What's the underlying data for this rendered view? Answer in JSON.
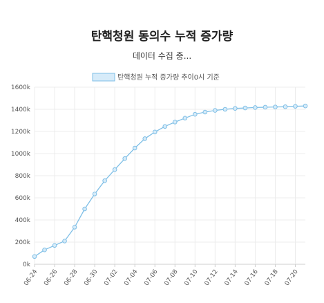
{
  "header": {
    "title": "탄핵청원 동의수 누적 증가량",
    "status": "데이터 수집 중..."
  },
  "chart_data": {
    "type": "line",
    "title": "탄핵청원 동의수 누적 증가량",
    "legend": {
      "label": "탄핵청원 누적 증가량 추이0시 기준",
      "position": "top"
    },
    "grid": true,
    "ylim": [
      0,
      1600000
    ],
    "yticks": [
      0,
      200000,
      400000,
      600000,
      800000,
      1000000,
      1200000,
      1400000,
      1600000
    ],
    "ytick_labels": [
      "0k",
      "200k",
      "400k",
      "600k",
      "800k",
      "1000k",
      "1200k",
      "1400k",
      "1600k"
    ],
    "x": [
      "06-24",
      "06-25",
      "06-26",
      "06-27",
      "06-28",
      "06-29",
      "06-30",
      "07-01",
      "07-02",
      "07-03",
      "07-04",
      "07-05",
      "07-06",
      "07-07",
      "07-08",
      "07-09",
      "07-10",
      "07-11",
      "07-12",
      "07-13",
      "07-14",
      "07-15",
      "07-16",
      "07-17",
      "07-18",
      "07-19",
      "07-20",
      "07-21"
    ],
    "xtick_labels": [
      "06-24",
      "06-26",
      "06-28",
      "06-30",
      "07-02",
      "07-04",
      "07-06",
      "07-08",
      "07-10",
      "07-12",
      "07-14",
      "07-16",
      "07-18",
      "07-20"
    ],
    "series": [
      {
        "name": "탄핵청원 누적 증가량 추이0시 기준",
        "color": "#7fbfe6",
        "values": [
          70000,
          130000,
          170000,
          210000,
          335000,
          500000,
          635000,
          755000,
          855000,
          955000,
          1050000,
          1135000,
          1195000,
          1245000,
          1285000,
          1320000,
          1355000,
          1375000,
          1390000,
          1400000,
          1408000,
          1412000,
          1416000,
          1419000,
          1421000,
          1423000,
          1427000,
          1430000
        ]
      }
    ]
  }
}
